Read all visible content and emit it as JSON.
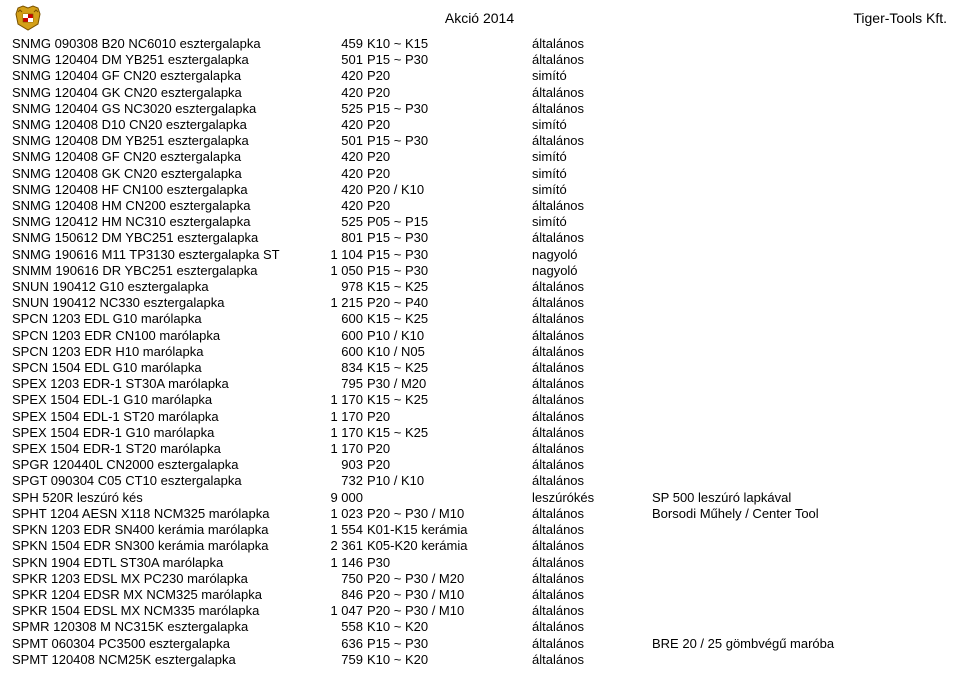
{
  "header": {
    "title": "Akció 2014",
    "company": "Tiger-Tools Kft."
  },
  "rows": [
    {
      "name": "SNMG 090308 B20 NC6010 esztergalapka",
      "price": "459",
      "spec": "K10 ~ K15",
      "cat": "általános",
      "note": ""
    },
    {
      "name": "SNMG 120404 DM YB251 esztergalapka",
      "price": "501",
      "spec": "P15 ~ P30",
      "cat": "általános",
      "note": ""
    },
    {
      "name": "SNMG 120404 GF CN20 esztergalapka",
      "price": "420",
      "spec": "P20",
      "cat": "simító",
      "note": ""
    },
    {
      "name": "SNMG 120404 GK CN20 esztergalapka",
      "price": "420",
      "spec": "P20",
      "cat": "általános",
      "note": ""
    },
    {
      "name": "SNMG 120404 GS NC3020 esztergalapka",
      "price": "525",
      "spec": "P15 ~ P30",
      "cat": "általános",
      "note": ""
    },
    {
      "name": "SNMG 120408 D10 CN20 esztergalapka",
      "price": "420",
      "spec": "P20",
      "cat": "simító",
      "note": ""
    },
    {
      "name": "SNMG 120408 DM YB251 esztergalapka",
      "price": "501",
      "spec": "P15 ~ P30",
      "cat": "általános",
      "note": ""
    },
    {
      "name": "SNMG 120408 GF CN20 esztergalapka",
      "price": "420",
      "spec": "P20",
      "cat": "simító",
      "note": ""
    },
    {
      "name": "SNMG 120408 GK CN20 esztergalapka",
      "price": "420",
      "spec": "P20",
      "cat": "simító",
      "note": ""
    },
    {
      "name": "SNMG 120408 HF CN100 esztergalapka",
      "price": "420",
      "spec": "P20 / K10",
      "cat": "simító",
      "note": ""
    },
    {
      "name": "SNMG 120408 HM CN200 esztergalapka",
      "price": "420",
      "spec": "P20",
      "cat": "általános",
      "note": ""
    },
    {
      "name": "SNMG 120412 HM NC310 esztergalapka",
      "price": "525",
      "spec": "P05 ~ P15",
      "cat": "simító",
      "note": ""
    },
    {
      "name": "SNMG 150612 DM YBC251 esztergalapka",
      "price": "801",
      "spec": "P15 ~ P30",
      "cat": "általános",
      "note": ""
    },
    {
      "name": "SNMG 190616 M11 TP3130 esztergalapka ST",
      "price": "1 104",
      "spec": "P15 ~ P30",
      "cat": "nagyoló",
      "note": ""
    },
    {
      "name": "SNMM 190616 DR YBC251 esztergalapka",
      "price": "1 050",
      "spec": "P15 ~ P30",
      "cat": "nagyoló",
      "note": ""
    },
    {
      "name": "SNUN 190412 G10 esztergalapka",
      "price": "978",
      "spec": "K15 ~ K25",
      "cat": "általános",
      "note": ""
    },
    {
      "name": "SNUN 190412 NC330 esztergalapka",
      "price": "1 215",
      "spec": "P20 ~ P40",
      "cat": "általános",
      "note": ""
    },
    {
      "name": "SPCN 1203 EDL G10 marólapka",
      "price": "600",
      "spec": "K15 ~ K25",
      "cat": "általános",
      "note": ""
    },
    {
      "name": "SPCN 1203 EDR CN100 marólapka",
      "price": "600",
      "spec": "P10 / K10",
      "cat": "általános",
      "note": ""
    },
    {
      "name": "SPCN 1203 EDR H10 marólapka",
      "price": "600",
      "spec": "K10 / N05",
      "cat": "általános",
      "note": ""
    },
    {
      "name": "SPCN 1504 EDL G10 marólapka",
      "price": "834",
      "spec": "K15 ~ K25",
      "cat": "általános",
      "note": ""
    },
    {
      "name": "SPEX 1203 EDR-1 ST30A marólapka",
      "price": "795",
      "spec": "P30 / M20",
      "cat": "általános",
      "note": ""
    },
    {
      "name": "SPEX 1504 EDL-1 G10 marólapka",
      "price": "1 170",
      "spec": "K15 ~ K25",
      "cat": "általános",
      "note": ""
    },
    {
      "name": "SPEX 1504 EDL-1 ST20 marólapka",
      "price": "1 170",
      "spec": "P20",
      "cat": "általános",
      "note": ""
    },
    {
      "name": "SPEX 1504 EDR-1 G10 marólapka",
      "price": "1 170",
      "spec": "K15 ~ K25",
      "cat": "általános",
      "note": ""
    },
    {
      "name": "SPEX 1504 EDR-1 ST20 marólapka",
      "price": "1 170",
      "spec": "P20",
      "cat": "általános",
      "note": ""
    },
    {
      "name": "SPGR 120440L CN2000 esztergalapka",
      "price": "903",
      "spec": "P20",
      "cat": "általános",
      "note": ""
    },
    {
      "name": "SPGT 090304 C05 CT10 esztergalapka",
      "price": "732",
      "spec": "P10 / K10",
      "cat": "általános",
      "note": ""
    },
    {
      "name": "SPH 520R leszúró kés",
      "price": "9 000",
      "spec": "",
      "cat": "leszúrókés",
      "note": "SP 500 leszúró lapkával"
    },
    {
      "name": "SPHT 1204 AESN X118 NCM325 marólapka",
      "price": "1 023",
      "spec": "P20 ~ P30 / M10",
      "cat": "általános",
      "note": "Borsodi Műhely / Center Tool"
    },
    {
      "name": "SPKN 1203 EDR SN400 kerámia marólapka",
      "price": "1 554",
      "spec": "K01-K15 kerámia",
      "cat": "általános",
      "note": ""
    },
    {
      "name": "SPKN 1504 EDR SN300 kerámia marólapka",
      "price": "2 361",
      "spec": "K05-K20 kerámia",
      "cat": "általános",
      "note": ""
    },
    {
      "name": "SPKN 1904 EDTL ST30A marólapka",
      "price": "1 146",
      "spec": "P30",
      "cat": "általános",
      "note": ""
    },
    {
      "name": "SPKR 1203 EDSL MX PC230 marólapka",
      "price": "750",
      "spec": "P20 ~ P30 / M20",
      "cat": "általános",
      "note": ""
    },
    {
      "name": "SPKR 1204 EDSR MX NCM325 marólapka",
      "price": "846",
      "spec": "P20 ~ P30 / M10",
      "cat": "általános",
      "note": ""
    },
    {
      "name": "SPKR 1504 EDSL MX NCM335 marólapka",
      "price": "1 047",
      "spec": "P20 ~ P30 / M10",
      "cat": "általános",
      "note": ""
    },
    {
      "name": "SPMR 120308 M NC315K esztergalapka",
      "price": "558",
      "spec": "K10 ~ K20",
      "cat": "általános",
      "note": ""
    },
    {
      "name": "SPMT 060304 PC3500 esztergalapka",
      "price": "636",
      "spec": "P15 ~ P30",
      "cat": "általános",
      "note": "BRE 20 / 25 gömbvégű maróba"
    },
    {
      "name": "SPMT 120408 NCM25K esztergalapka",
      "price": "759",
      "spec": "K10 ~ K20",
      "cat": "általános",
      "note": ""
    }
  ]
}
